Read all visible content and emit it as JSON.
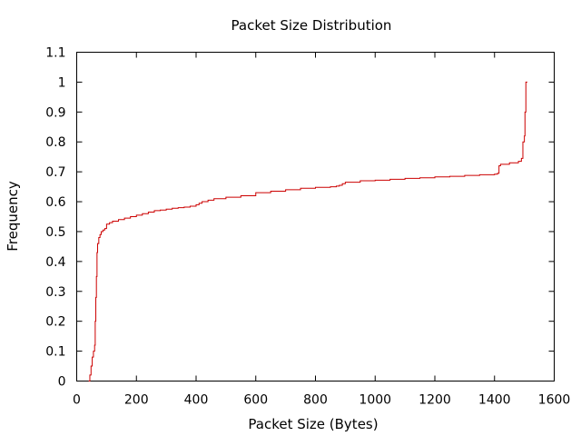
{
  "chart_data": {
    "type": "line",
    "title": "Packet Size Distribution",
    "xlabel": "Packet Size (Bytes)",
    "ylabel": "Frequency",
    "xlim": [
      0,
      1600
    ],
    "ylim": [
      0,
      1.1
    ],
    "x_ticks": [
      "0",
      "200",
      "400",
      "600",
      "800",
      "1000",
      "1200",
      "1400",
      "1600"
    ],
    "y_ticks": [
      "0",
      "0.1",
      "0.2",
      "0.3",
      "0.4",
      "0.5",
      "0.6",
      "0.7",
      "0.8",
      "0.9",
      "1",
      "1.1"
    ],
    "grid": false,
    "step": true,
    "line_color": "#cc0000",
    "series": [
      {
        "x": [
          40,
          44,
          48,
          52,
          56,
          60,
          62,
          64,
          66,
          68,
          70,
          74,
          78,
          82,
          88,
          94,
          100,
          110,
          120,
          140,
          160,
          180,
          200,
          220,
          240,
          260,
          280,
          300,
          320,
          340,
          360,
          380,
          400,
          410,
          420,
          440,
          460,
          500,
          550,
          600,
          650,
          700,
          750,
          800,
          850,
          870,
          880,
          890,
          900,
          950,
          1000,
          1050,
          1100,
          1150,
          1200,
          1250,
          1300,
          1350,
          1400,
          1410,
          1415,
          1420,
          1450,
          1480,
          1490,
          1495,
          1500,
          1502,
          1505,
          1510
        ],
        "y": [
          0.0,
          0.02,
          0.05,
          0.08,
          0.1,
          0.12,
          0.2,
          0.28,
          0.35,
          0.43,
          0.46,
          0.48,
          0.49,
          0.5,
          0.505,
          0.51,
          0.525,
          0.53,
          0.535,
          0.54,
          0.545,
          0.55,
          0.555,
          0.56,
          0.565,
          0.57,
          0.572,
          0.575,
          0.578,
          0.58,
          0.582,
          0.585,
          0.59,
          0.595,
          0.6,
          0.605,
          0.61,
          0.615,
          0.62,
          0.63,
          0.635,
          0.64,
          0.645,
          0.648,
          0.65,
          0.652,
          0.655,
          0.66,
          0.665,
          0.67,
          0.672,
          0.675,
          0.678,
          0.68,
          0.683,
          0.685,
          0.688,
          0.69,
          0.692,
          0.695,
          0.72,
          0.725,
          0.73,
          0.735,
          0.745,
          0.8,
          0.82,
          0.9,
          1.0,
          1.0
        ]
      }
    ]
  }
}
